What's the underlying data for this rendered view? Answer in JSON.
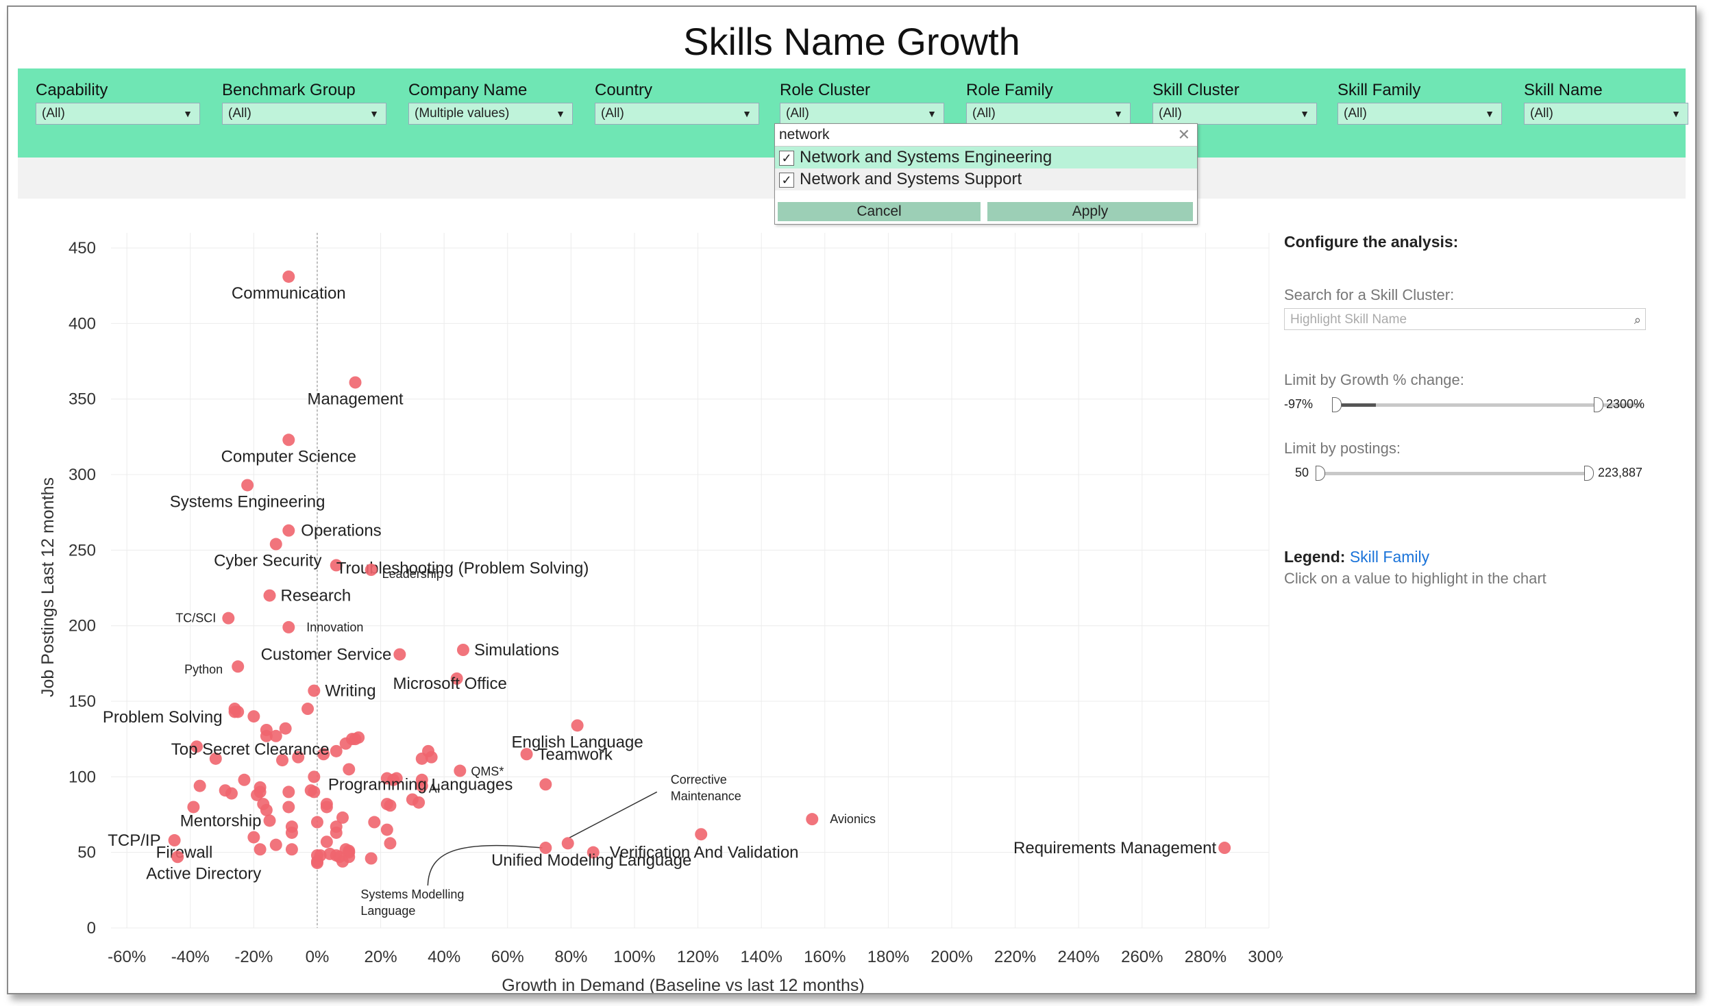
{
  "title": "Skills Name Growth",
  "filters": [
    {
      "label": "Capability",
      "value": "(All)"
    },
    {
      "label": "Benchmark Group",
      "value": "(All)"
    },
    {
      "label": "Company Name",
      "value": "(Multiple values)"
    },
    {
      "label": "Country",
      "value": "(All)"
    },
    {
      "label": "Role Cluster",
      "value": "(All)"
    },
    {
      "label": "Role Family",
      "value": "(All)"
    },
    {
      "label": "Skill Cluster",
      "value": "(All)"
    },
    {
      "label": "Skill Family",
      "value": "(All)"
    },
    {
      "label": "Skill Name",
      "value": "(All)"
    }
  ],
  "dropdown": {
    "search_value": "network",
    "options": [
      {
        "label": "Network and Systems Engineering",
        "checked": true
      },
      {
        "label": "Network and Systems Support",
        "checked": true
      }
    ],
    "cancel_label": "Cancel",
    "apply_label": "Apply"
  },
  "panel": {
    "heading": "Configure the analysis:",
    "search_label": "Search for a Skill Cluster:",
    "search_placeholder": "Highlight Skill Name",
    "growth_label": "Limit by Growth % change:",
    "growth_min": "-97%",
    "growth_max": "2300%",
    "postings_label": "Limit by postings:",
    "postings_min": "50",
    "postings_max": "223,887",
    "legend_label": "Legend:",
    "legend_value": "Skill Family",
    "legend_hint": "Click on a value to highlight in the chart"
  },
  "colors": {
    "filterbar": "#6fe6b4",
    "point": "#f0656e",
    "legend_link": "#1a73d9"
  },
  "chart_data": {
    "type": "scatter",
    "xlabel": "Growth in Demand (Baseline vs last 12 months)",
    "ylabel": "Job Postings Last 12 months",
    "xlim": [
      -65,
      300
    ],
    "ylim": [
      0,
      460
    ],
    "xticks": [
      -60,
      -40,
      -20,
      0,
      20,
      40,
      60,
      80,
      100,
      120,
      140,
      160,
      180,
      200,
      220,
      240,
      260,
      280,
      300
    ],
    "xtick_labels": [
      "-60%",
      "-40%",
      "-20%",
      "0%",
      "20%",
      "40%",
      "60%",
      "80%",
      "100%",
      "120%",
      "140%",
      "160%",
      "180%",
      "200%",
      "220%",
      "240%",
      "260%",
      "280%",
      "300%"
    ],
    "yticks": [
      0,
      50,
      100,
      150,
      200,
      250,
      300,
      350,
      400,
      450
    ],
    "grid": true,
    "zero_reference_line": true,
    "labeled_points": [
      {
        "label": "Communication",
        "x": -9,
        "y": 431
      },
      {
        "label": "Management",
        "x": 12,
        "y": 361
      },
      {
        "label": "Computer Science",
        "x": -9,
        "y": 323
      },
      {
        "label": "Systems Engineering",
        "x": -22,
        "y": 293
      },
      {
        "label": "Operations",
        "x": -9,
        "y": 263
      },
      {
        "label": "Cyber Security",
        "x": -13,
        "y": 254
      },
      {
        "label": "Troubleshooting (Problem Solving)",
        "x": 6,
        "y": 240
      },
      {
        "label": "Leadership",
        "x": 17,
        "y": 237
      },
      {
        "label": "Research",
        "x": -15,
        "y": 220
      },
      {
        "label": "TC/SCI",
        "x": -28,
        "y": 205
      },
      {
        "label": "Innovation",
        "x": -9,
        "y": 199
      },
      {
        "label": "Simulations",
        "x": 46,
        "y": 184
      },
      {
        "label": "Customer Service",
        "x": 26,
        "y": 181
      },
      {
        "label": "Python",
        "x": -25,
        "y": 173
      },
      {
        "label": "Microsoft Office",
        "x": 44,
        "y": 165
      },
      {
        "label": "Writing",
        "x": -1,
        "y": 157
      },
      {
        "label": "Problem Solving",
        "x": -26,
        "y": 145
      },
      {
        "label": "Top Secret Clearance",
        "x": 13,
        "y": 126
      },
      {
        "label": "English Language",
        "x": 82,
        "y": 134
      },
      {
        "label": "Teamwork",
        "x": 66,
        "y": 115
      },
      {
        "label": "QMS*",
        "x": 45,
        "y": 104
      },
      {
        "label": "AI",
        "x": 33,
        "y": 94
      },
      {
        "label": "Programming Languages",
        "x": 72,
        "y": 95
      },
      {
        "label": "Mentorship",
        "x": -15,
        "y": 71
      },
      {
        "label": "Avionics",
        "x": 156,
        "y": 72
      },
      {
        "label": "TCP/IP",
        "x": -45,
        "y": 58
      },
      {
        "label": "Corrective Maintenance",
        "x": 79,
        "y": 56
      },
      {
        "label": "Requirements Management",
        "x": 286,
        "y": 53
      },
      {
        "label": "Verification And Validation",
        "x": 87,
        "y": 50
      },
      {
        "label": "Systems Modelling Language",
        "x": 72,
        "y": 53
      },
      {
        "label": "Firewall",
        "x": -20,
        "y": 60
      },
      {
        "label": "Unified Modeling Language",
        "x": 121,
        "y": 62
      },
      {
        "label": "Active Directory",
        "x": -44,
        "y": 47
      }
    ],
    "unlabeled_points": [
      [
        -38,
        120
      ],
      [
        -32,
        112
      ],
      [
        -37,
        94
      ],
      [
        -39,
        80
      ],
      [
        -27,
        89
      ],
      [
        -29,
        91
      ],
      [
        -23,
        98
      ],
      [
        -25,
        143
      ],
      [
        -26,
        143
      ],
      [
        -20,
        140
      ],
      [
        -16,
        131
      ],
      [
        -16,
        127
      ],
      [
        -13,
        127
      ],
      [
        -10,
        132
      ],
      [
        -3,
        145
      ],
      [
        -19,
        88
      ],
      [
        -18,
        93
      ],
      [
        -18,
        90
      ],
      [
        -17,
        82
      ],
      [
        -16,
        78
      ],
      [
        -9,
        80
      ],
      [
        -11,
        111
      ],
      [
        -6,
        113
      ],
      [
        -1,
        100
      ],
      [
        -2,
        91
      ],
      [
        -1,
        90
      ],
      [
        2,
        115
      ],
      [
        6,
        117
      ],
      [
        10,
        105
      ],
      [
        9,
        122
      ],
      [
        11,
        125
      ],
      [
        12,
        125
      ],
      [
        3,
        82
      ],
      [
        3,
        80
      ],
      [
        0,
        70
      ],
      [
        6,
        67
      ],
      [
        8,
        73
      ],
      [
        -8,
        63
      ],
      [
        -8,
        67
      ],
      [
        3,
        57
      ],
      [
        1,
        48
      ],
      [
        6,
        63
      ],
      [
        9,
        52
      ],
      [
        10,
        50
      ],
      [
        10,
        51
      ],
      [
        10,
        47
      ],
      [
        4,
        49
      ],
      [
        6,
        48
      ],
      [
        7,
        47
      ],
      [
        0,
        48
      ],
      [
        0,
        44
      ],
      [
        0,
        43
      ],
      [
        8,
        44
      ],
      [
        18,
        70
      ],
      [
        -8,
        52
      ],
      [
        -13,
        55
      ],
      [
        -18,
        52
      ],
      [
        -9,
        90
      ],
      [
        22,
        82
      ],
      [
        23,
        81
      ],
      [
        22,
        65
      ],
      [
        23,
        56
      ],
      [
        17,
        46
      ],
      [
        30,
        85
      ],
      [
        32,
        83
      ],
      [
        33,
        112
      ],
      [
        35,
        117
      ],
      [
        36,
        113
      ],
      [
        22,
        99
      ],
      [
        24,
        98
      ],
      [
        25,
        99
      ],
      [
        33,
        98
      ]
    ]
  }
}
